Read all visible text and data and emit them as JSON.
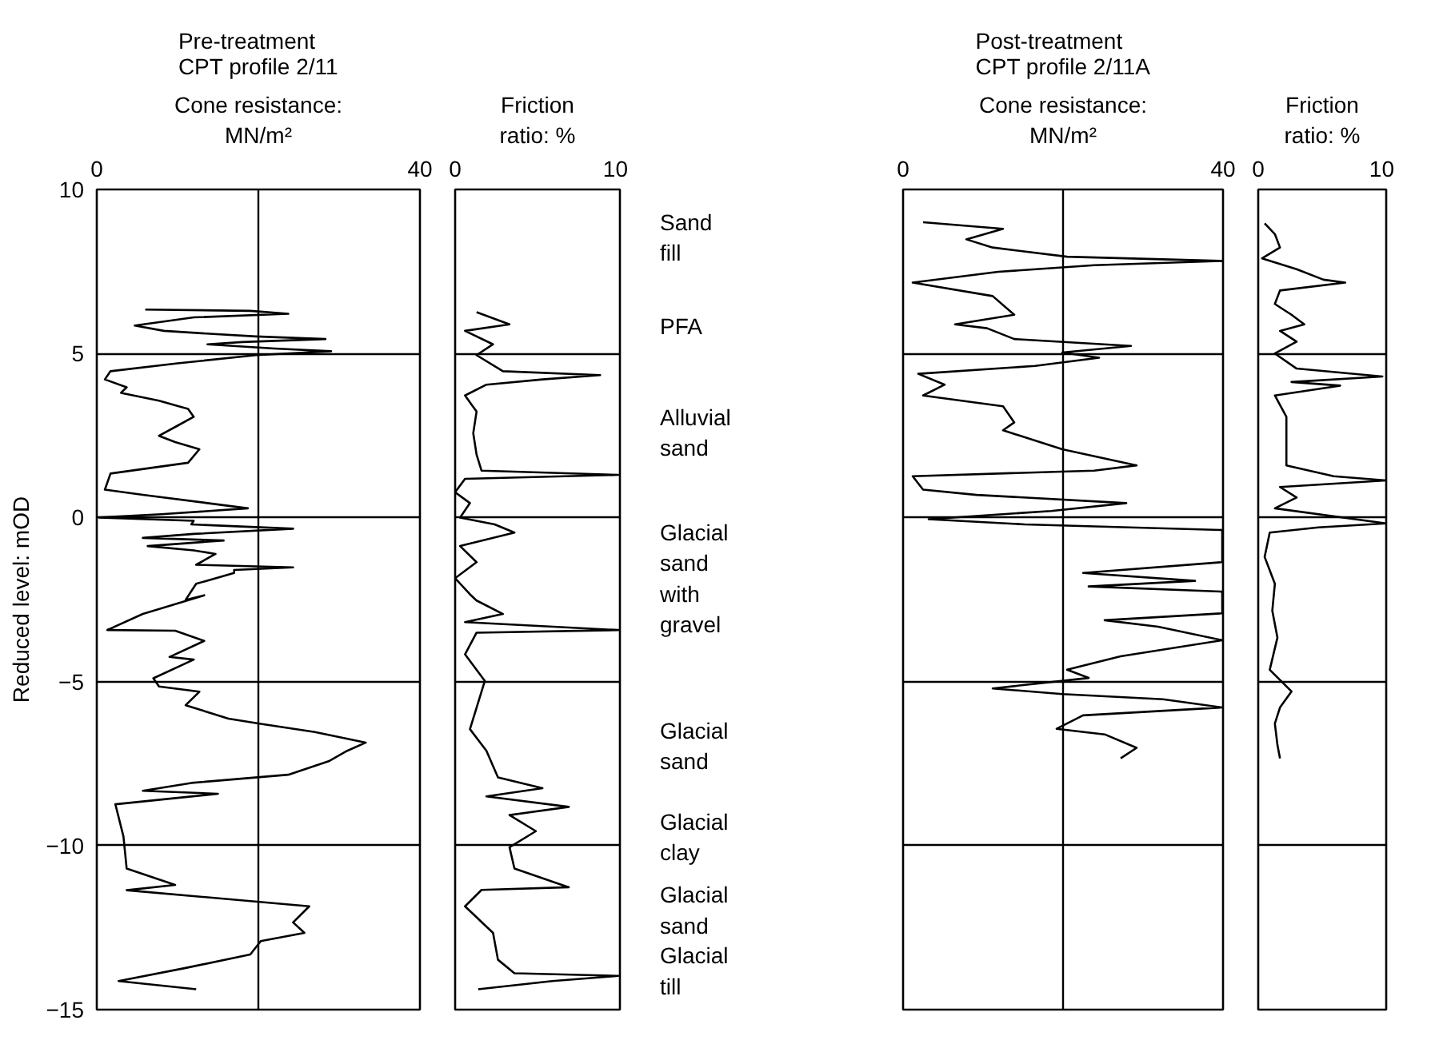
{
  "chart_data": [
    {
      "type": "line",
      "title": "Pre-treatment CPT profile 2/11",
      "xlabel": "Cone resistance: MN/m²",
      "ylabel": "Reduced level: mOD",
      "xlim": [
        0,
        40
      ],
      "ylim": [
        -15,
        10
      ],
      "xticks": [
        0,
        {
          "value": 20,
          "label": null
        },
        40
      ],
      "yticks": [
        {
          "value": -15,
          "label": "−15"
        },
        {
          "value": -10,
          "label": "−10"
        },
        {
          "value": -5,
          "label": "−5"
        },
        0,
        5,
        10
      ],
      "grid": true,
      "color": "#000000",
      "x": [
        6,
        19,
        23.7,
        12,
        4.7,
        8.3,
        14,
        19.7,
        28.3,
        18,
        13.7,
        22,
        29,
        19.7,
        10,
        1.7,
        1,
        3.7,
        3,
        7.7,
        11.3,
        12,
        10,
        7.7,
        9.7,
        12.7,
        11.3,
        1.7,
        1,
        5.7,
        13.7,
        18.7,
        8,
        0.3,
        12,
        11.7,
        24.3,
        12,
        5.7,
        15.7,
        6.3,
        12,
        14.7,
        12.3,
        24.3,
        17,
        17,
        12.3,
        11,
        13.3,
        5.7,
        1.3,
        9.7,
        13.3,
        9,
        12,
        7,
        7.7,
        12.7,
        11,
        16.3,
        20.3,
        27,
        33.3,
        31,
        28.7,
        23.7,
        11.7,
        5.7,
        15,
        2.3,
        3.3,
        3.7,
        9.7,
        3.7,
        26.3,
        24.3,
        25.7,
        20.3,
        19,
        11,
        2.7,
        12.3
      ],
      "values": [
        6.34,
        6.3,
        6.21,
        6.1,
        5.85,
        5.69,
        5.6,
        5.52,
        5.44,
        5.35,
        5.28,
        5.15,
        5.07,
        4.95,
        4.7,
        4.46,
        4.21,
        3.97,
        3.8,
        3.56,
        3.31,
        3.07,
        2.8,
        2.49,
        2.3,
        2.08,
        1.67,
        1.34,
        0.85,
        0.69,
        0.44,
        0.28,
        0.1,
        0,
        -0.1,
        -0.21,
        -0.34,
        -0.5,
        -0.62,
        -0.7,
        -0.87,
        -1.0,
        -1.11,
        -1.44,
        -1.52,
        -1.6,
        -1.69,
        -2.02,
        -2.51,
        -2.37,
        -2.94,
        -3.43,
        -3.45,
        -3.76,
        -4.25,
        -4.33,
        -4.9,
        -5.15,
        -5.31,
        -5.72,
        -6.13,
        -6.29,
        -6.54,
        -6.86,
        -7.11,
        -7.43,
        -7.84,
        -8.09,
        -8.33,
        -8.42,
        -8.74,
        -9.72,
        -10.7,
        -11.2,
        -11.36,
        -11.85,
        -12.34,
        -12.66,
        -12.91,
        -13.32,
        -13.73,
        -14.13,
        -14.38
      ]
    },
    {
      "type": "line",
      "xlabel": "Friction ratio: %",
      "xlim": [
        0,
        10
      ],
      "ylim": [
        -15,
        10
      ],
      "xticks": [
        0,
        10
      ],
      "yticks": [
        -15,
        -10,
        -5,
        0,
        5,
        10
      ],
      "grid": "y",
      "tick_labels": "x",
      "color": "#000000",
      "x": [
        1.3,
        3.3,
        0.6,
        2.3,
        1.3,
        2.9,
        8.8,
        5.3,
        1.9,
        0.6,
        1.3,
        1.1,
        1.3,
        1.6,
        9.9,
        0.6,
        0,
        0.9,
        0.3,
        2.4,
        3.6,
        0.3,
        1.3,
        0,
        0.9,
        1.3,
        2.9,
        0.6,
        9.9,
        1.3,
        0.6,
        1.8,
        1.3,
        0.9,
        1.9,
        2.6,
        5.3,
        1.9,
        6.9,
        3.3,
        4.9,
        3.3,
        3.6,
        6.9,
        1.6,
        0.6,
        2.3,
        2.6,
        3.6,
        9.9,
        5.9,
        1.4
      ],
      "values": [
        6.26,
        5.89,
        5.69,
        5.28,
        4.95,
        4.46,
        4.34,
        4.21,
        4.05,
        3.72,
        3.23,
        2.57,
        1.92,
        1.43,
        1.3,
        1.18,
        0.77,
        0.44,
        0,
        -0.21,
        -0.46,
        -0.87,
        -1.36,
        -1.85,
        -2.34,
        -2.53,
        -2.94,
        -3.19,
        -3.43,
        -3.51,
        -4.17,
        -4.98,
        -5.8,
        -6.45,
        -7.11,
        -7.92,
        -8.25,
        -8.5,
        -8.82,
        -9.07,
        -9.56,
        -10.05,
        -10.7,
        -11.27,
        -11.35,
        -11.85,
        -12.66,
        -13.48,
        -13.89,
        -13.97,
        -14.13,
        -14.38
      ]
    },
    {
      "type": "other",
      "annotations": [
        "Sand fill",
        "PFA",
        "Alluvial sand",
        "Glacial sand with gravel",
        "Glacial sand",
        "Glacial clay",
        "Glacial sand",
        "Glacial till"
      ]
    },
    {
      "type": "line",
      "title": "Post-treatment CPT profile 2/11A",
      "xlabel": "Cone resistance: MN/m²",
      "xlim": [
        0,
        40
      ],
      "ylim": [
        -15,
        10
      ],
      "xticks": [
        0,
        {
          "value": 20,
          "label": null
        },
        40
      ],
      "yticks": [
        -15,
        -10,
        -5,
        0,
        5,
        10
      ],
      "grid": true,
      "tick_labels": "x",
      "color": "#000000",
      "x": [
        2.5,
        12.5,
        7.9,
        11.2,
        20.5,
        39.9,
        23.9,
        11.9,
        1.2,
        11.2,
        13.9,
        6.5,
        10.5,
        13.9,
        28.5,
        19.9,
        24.5,
        16.5,
        1.9,
        5.2,
        2.5,
        12.5,
        13.9,
        12.5,
        19.9,
        29.2,
        23.9,
        1.2,
        2.5,
        9.2,
        27.9,
        18.5,
        3.2,
        15.2,
        39.9,
        39.9,
        22.5,
        36.5,
        23.2,
        39.9,
        39.9,
        25.2,
        31.9,
        39.9,
        27.2,
        20.5,
        23.2,
        11.2,
        19.9,
        32.5,
        39.9,
        22.5,
        19.2,
        25.2,
        29.2,
        27.2
      ],
      "values": [
        9.0,
        8.8,
        8.48,
        8.23,
        7.95,
        7.82,
        7.69,
        7.49,
        7.16,
        6.75,
        6.18,
        5.89,
        5.77,
        5.44,
        5.23,
        5.03,
        4.87,
        4.62,
        4.38,
        4.05,
        3.72,
        3.39,
        2.9,
        2.66,
        2.08,
        1.59,
        1.43,
        1.26,
        0.85,
        0.69,
        0.44,
        0.2,
        -0.05,
        -0.21,
        -0.38,
        -1.36,
        -1.69,
        -1.93,
        -2.1,
        -2.26,
        -2.92,
        -3.13,
        -3.33,
        -3.74,
        -4.23,
        -4.64,
        -4.89,
        -5.21,
        -5.38,
        -5.54,
        -5.79,
        -6.03,
        -6.44,
        -6.61,
        -7.02,
        -7.34
      ]
    },
    {
      "type": "line",
      "xlabel": "Friction ratio: %",
      "xlim": [
        0,
        10
      ],
      "ylim": [
        -15,
        10
      ],
      "xticks": [
        0,
        10
      ],
      "yticks": [
        -15,
        -10,
        -5,
        0,
        5,
        10
      ],
      "grid": "y",
      "tick_labels": "x",
      "color": "#000000",
      "x": [
        0.5,
        1.3,
        1.7,
        0.3,
        3.0,
        5.1,
        6.8,
        1.7,
        1.3,
        2.6,
        3.6,
        1.7,
        3.0,
        1.3,
        3.0,
        9.7,
        2.6,
        6.4,
        1.3,
        2.2,
        2.2,
        2.2,
        5.9,
        10,
        1.7,
        3.0,
        1.3,
        10,
        4.7,
        0.9,
        0.5,
        1.3,
        1.1,
        1.5,
        0.9,
        2.6,
        1.7,
        1.3,
        1.5,
        1.7
      ],
      "values": [
        8.97,
        8.64,
        8.23,
        7.9,
        7.57,
        7.25,
        7.16,
        6.92,
        6.51,
        6.18,
        5.89,
        5.69,
        5.36,
        5.0,
        4.54,
        4.3,
        4.13,
        4.02,
        3.72,
        3.07,
        2.41,
        1.59,
        1.26,
        1.13,
        0.93,
        0.61,
        0.28,
        -0.18,
        -0.3,
        -0.46,
        -1.2,
        -2.02,
        -2.84,
        -3.66,
        -4.64,
        -5.3,
        -5.79,
        -6.28,
        -6.93,
        -7.34
      ]
    }
  ]
}
